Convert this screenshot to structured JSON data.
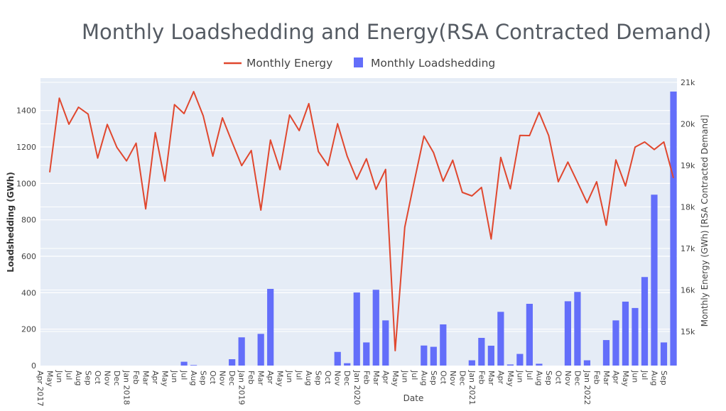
{
  "chart_data": {
    "type": "bar+line",
    "title": "Monthly Loadshedding and Energy(RSA Contracted Demand)",
    "xlabel": "Date",
    "ylabel": "Loadshedding (GWh)",
    "y2label": "Monthly Energy (GWh) [RSA Contracted Demand]",
    "ylim": [
      0,
      1578
    ],
    "y2lim": [
      14179,
      21103
    ],
    "y_ticks": [
      "0",
      "200",
      "400",
      "600",
      "800",
      "1000",
      "1200",
      "1400"
    ],
    "y_tick_values": [
      0,
      200,
      400,
      600,
      800,
      1000,
      1200,
      1400
    ],
    "y2_ticks": [
      "15k",
      "16k",
      "17k",
      "18k",
      "19k",
      "20k",
      "21k"
    ],
    "y2_tick_values": [
      15000,
      16000,
      17000,
      18000,
      19000,
      20000,
      21000
    ],
    "grid": true,
    "legend_position": "top-center",
    "x": [
      "2017-04",
      "2017-05",
      "2017-06",
      "2017-07",
      "2017-08",
      "2017-09",
      "2017-10",
      "2017-11",
      "2017-12",
      "2018-01",
      "2018-02",
      "2018-03",
      "2018-04",
      "2018-05",
      "2018-06",
      "2018-07",
      "2018-08",
      "2018-09",
      "2018-10",
      "2018-11",
      "2018-12",
      "2019-01",
      "2019-02",
      "2019-03",
      "2019-04",
      "2019-05",
      "2019-06",
      "2019-07",
      "2019-08",
      "2019-09",
      "2019-10",
      "2019-11",
      "2019-12",
      "2020-01",
      "2020-02",
      "2020-03",
      "2020-04",
      "2020-05",
      "2020-06",
      "2020-07",
      "2020-08",
      "2020-09",
      "2020-10",
      "2020-11",
      "2020-12",
      "2021-01",
      "2021-02",
      "2021-03",
      "2021-04",
      "2021-05",
      "2021-06",
      "2021-07",
      "2021-08",
      "2021-09",
      "2021-10",
      "2021-11",
      "2021-12",
      "2022-01",
      "2022-02",
      "2022-03",
      "2022-04",
      "2022-05",
      "2022-06",
      "2022-07",
      "2022-08",
      "2022-09"
    ],
    "x_ticks": [
      "Apr 2017",
      "May",
      "Jun",
      "Jul",
      "Aug",
      "Sep",
      "Oct",
      "Nov",
      "Dec",
      "Jan 2018",
      "Feb",
      "Mar",
      "Apr",
      "May",
      "Jun",
      "Jul",
      "Aug",
      "Sep",
      "Oct",
      "Nov",
      "Dec",
      "Jan 2019",
      "Feb",
      "Mar",
      "Apr",
      "May",
      "Jun",
      "Jul",
      "Aug",
      "Sep",
      "Oct",
      "Nov",
      "Dec",
      "Jan 2020",
      "Feb",
      "Mar",
      "Apr",
      "May",
      "Jun",
      "Jul",
      "Aug",
      "Sep",
      "Oct",
      "Nov",
      "Dec",
      "Jan 2021",
      "Feb",
      "Mar",
      "Apr",
      "May",
      "Jun",
      "Jul",
      "Aug",
      "Sep",
      "Oct",
      "Nov",
      "Dec",
      "Jan 2022",
      "Feb",
      "Mar",
      "Apr",
      "May",
      "Jun",
      "Jul",
      "Aug",
      "Sep"
    ],
    "series": [
      {
        "name": "Monthly Energy",
        "type": "line",
        "axis": "y2",
        "color": "#e0472e",
        "values": [
          18834,
          20619,
          19991,
          20402,
          20236,
          19176,
          19986,
          19433,
          19108,
          19535,
          17952,
          19792,
          18624,
          20464,
          20248,
          20778,
          20191,
          19222,
          20145,
          19564,
          18995,
          19359,
          17923,
          19610,
          18897,
          20214,
          19838,
          20487,
          19336,
          18995,
          20003,
          19222,
          18664,
          19159,
          18424,
          18903,
          14538,
          17513,
          18624,
          19706,
          19308,
          18619,
          19125,
          18350,
          18265,
          18470,
          17228,
          19194,
          18436,
          19723,
          19718,
          20276,
          19718,
          18607,
          19080,
          18595,
          18100,
          18607,
          17559,
          19132,
          18504,
          19439,
          19564,
          19382,
          19564,
          18697
        ]
      },
      {
        "name": "Monthly Loadshedding",
        "type": "bar",
        "axis": "y",
        "color": "#636efa",
        "values": [
          0,
          0,
          0,
          0,
          0,
          0,
          0,
          0,
          0,
          0,
          0,
          0,
          0,
          0,
          21,
          3,
          0,
          0,
          0,
          35,
          155,
          0,
          174,
          421,
          0,
          0,
          0,
          0,
          0,
          0,
          75,
          13,
          401,
          127,
          416,
          248,
          0,
          0,
          0,
          110,
          103,
          226,
          0,
          0,
          29,
          152,
          109,
          295,
          6,
          64,
          339,
          10,
          0,
          0,
          353,
          404,
          29,
          0,
          140,
          248,
          351,
          316,
          486,
          938,
          127,
          1504
        ]
      }
    ]
  }
}
